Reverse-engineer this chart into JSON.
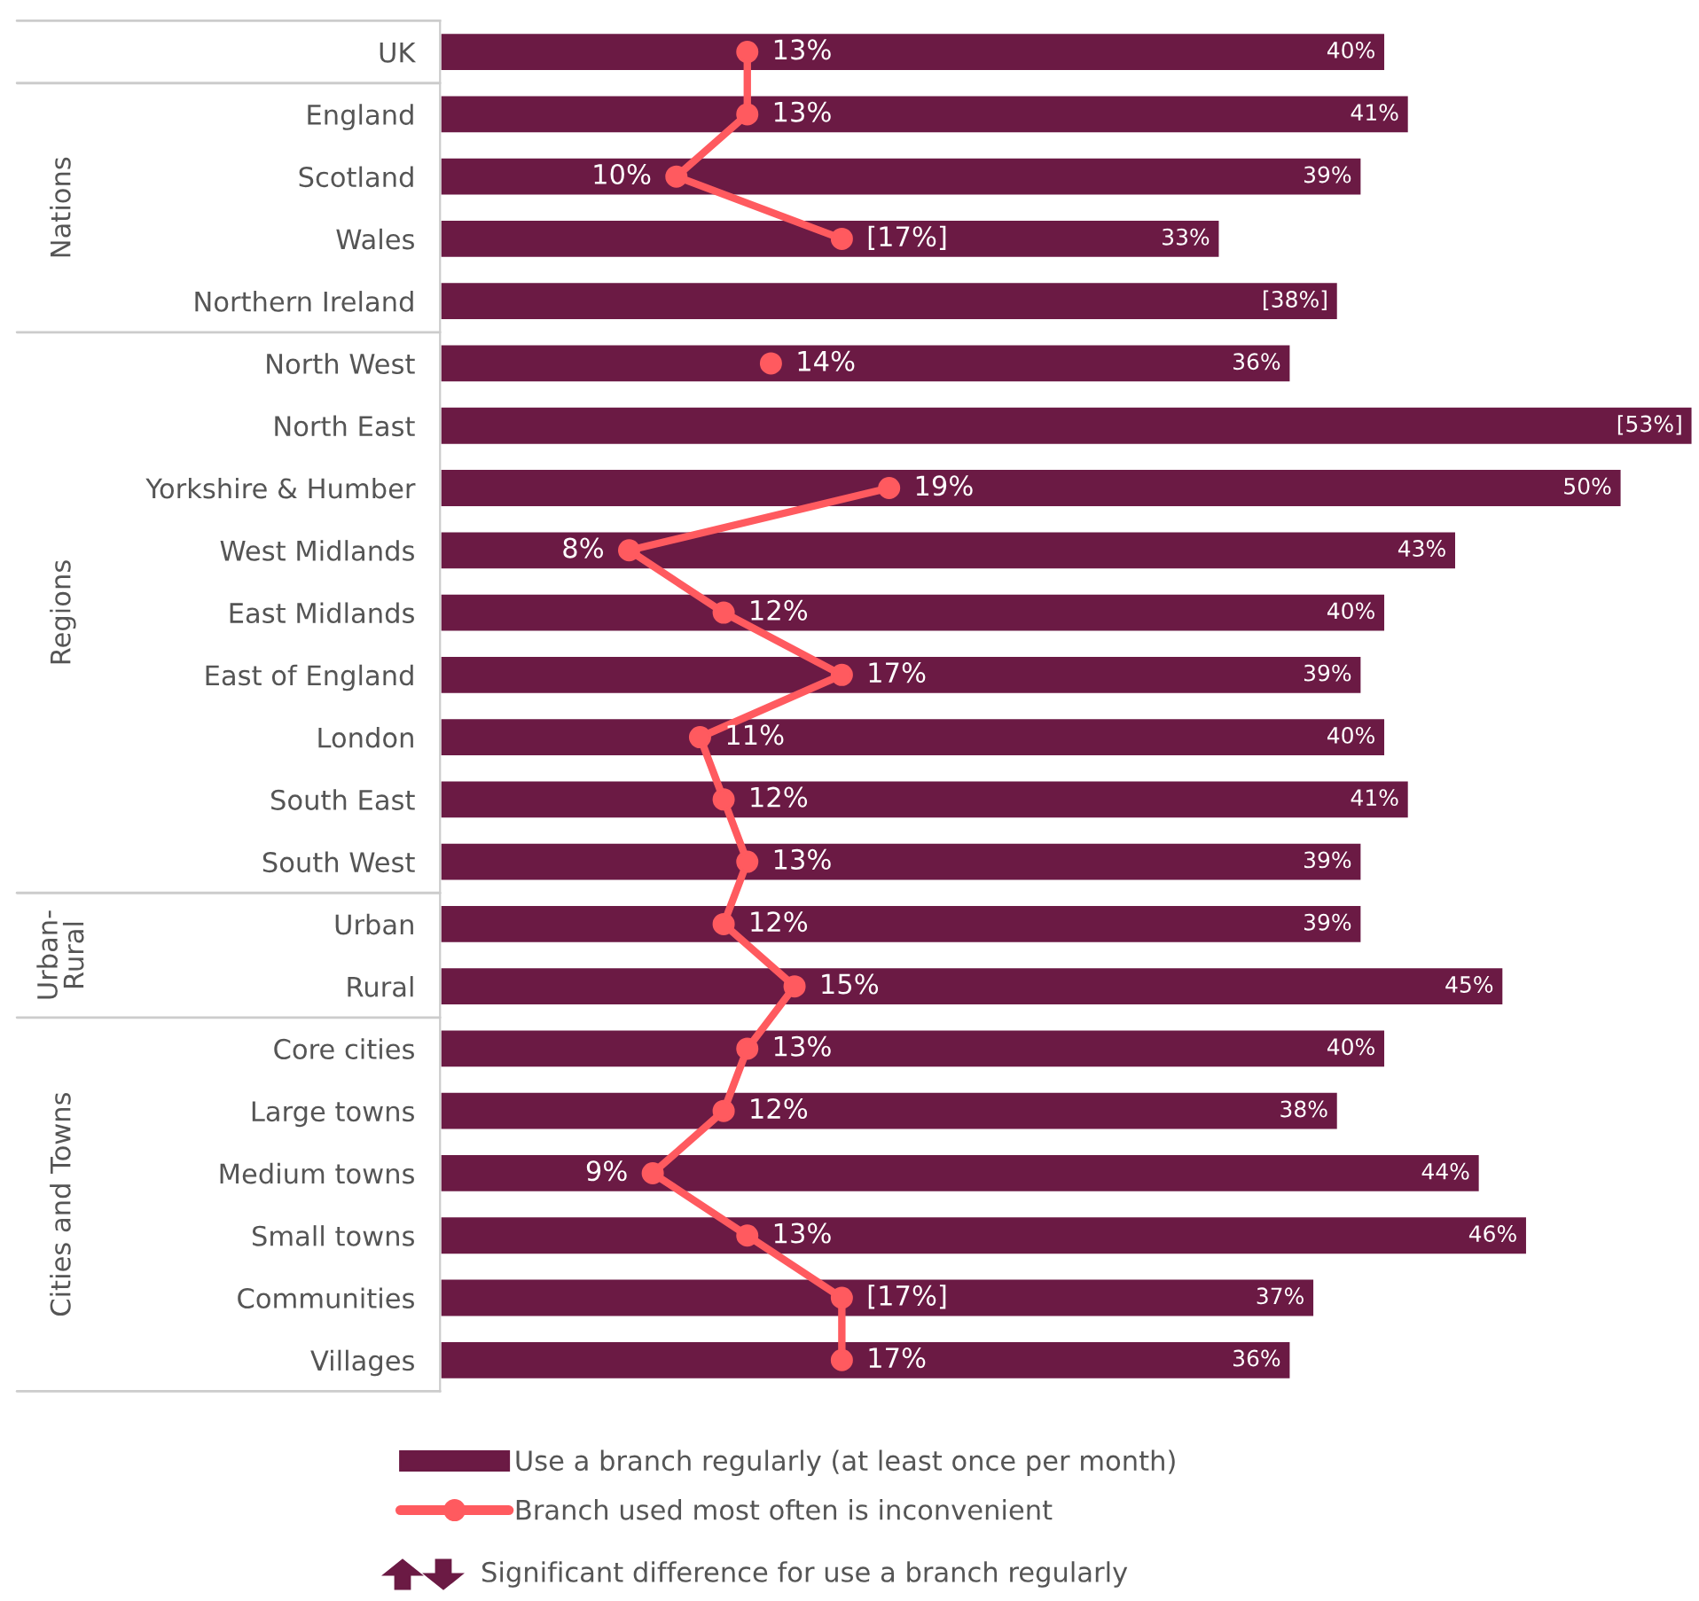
{
  "chart_data": {
    "type": "bar",
    "orientation": "horizontal",
    "categories": [
      "UK",
      "England",
      "Scotland",
      "Wales",
      "Northern Ireland",
      "North West",
      "North East",
      "Yorkshire & Humber",
      "West Midlands",
      "East Midlands",
      "East of England",
      "London",
      "South East",
      "South West",
      "Urban",
      "Rural",
      "Core cities",
      "Large towns",
      "Medium towns",
      "Small towns",
      "Communities",
      "Villages"
    ],
    "series": [
      {
        "name": "Use a branch regularly (at least once per month)",
        "color": "#6b1a44",
        "values": [
          40,
          41,
          39,
          33,
          38,
          36,
          53,
          50,
          43,
          40,
          39,
          40,
          41,
          39,
          39,
          45,
          40,
          38,
          44,
          46,
          37,
          36
        ],
        "value_labels": [
          "40%",
          "41%",
          "39%",
          "33%",
          "[38%]",
          "36%",
          "[53%]",
          "50%",
          "43%",
          "40%",
          "39%",
          "40%",
          "41%",
          "39%",
          "39%",
          "45%",
          "40%",
          "38%",
          "44%",
          "46%",
          "37%",
          "36%"
        ]
      },
      {
        "name": "Branch used most often is inconvenient",
        "type": "line",
        "color": "#ff5a5f",
        "marker": "circle",
        "line_style": "solid",
        "values": [
          13,
          13,
          10,
          17,
          null,
          14,
          null,
          19,
          8,
          12,
          17,
          11,
          12,
          13,
          12,
          15,
          13,
          12,
          9,
          13,
          17,
          17
        ],
        "value_labels": [
          "13%",
          "13%",
          "10%",
          "[17%]",
          null,
          "14%",
          null,
          "19%",
          "8%",
          "12%",
          "17%",
          "11%",
          "12%",
          "13%",
          "12%",
          "15%",
          "13%",
          "12%",
          "9%",
          "13%",
          "[17%]",
          "17%"
        ]
      }
    ],
    "annotations": [
      "Nations",
      "Regions",
      "Urban-Rural",
      "Cities and Towns",
      "Significant difference for use a branch regularly"
    ],
    "legend": "bottom",
    "grid": false
  }
}
